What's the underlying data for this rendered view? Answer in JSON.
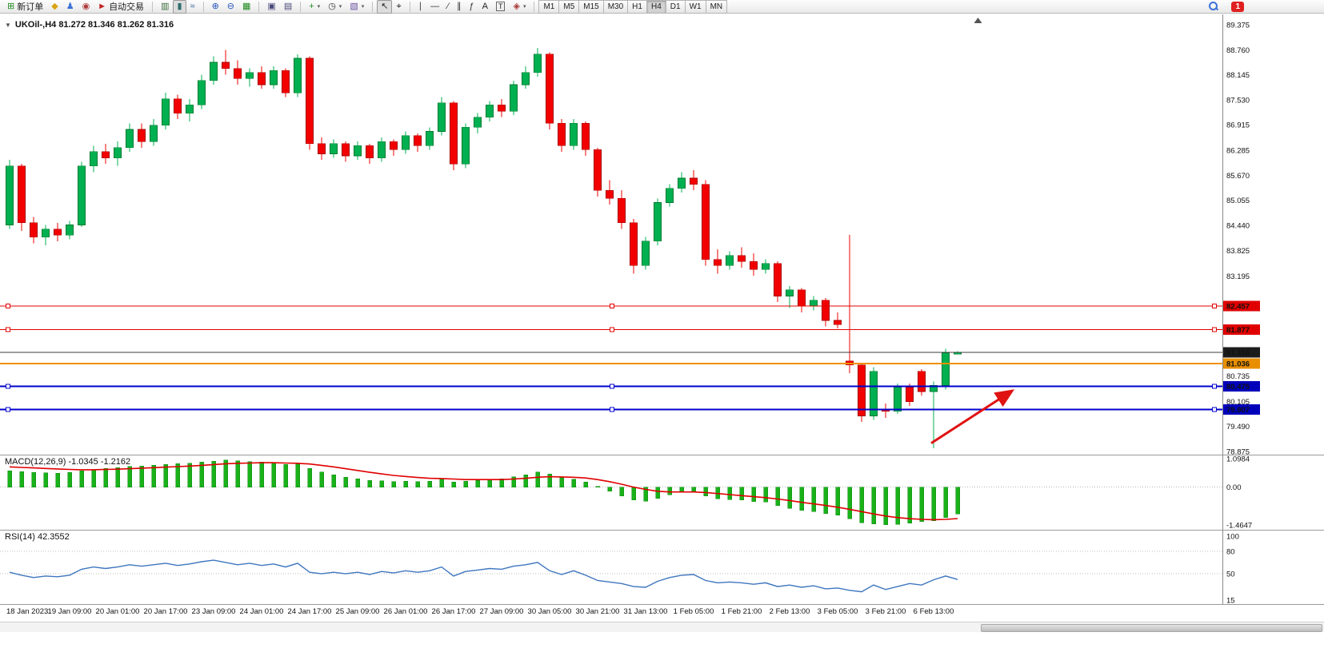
{
  "toolbar": {
    "notification_count": "1",
    "timeframes": [
      "M1",
      "M5",
      "M15",
      "M30",
      "H1",
      "H4",
      "D1",
      "W1",
      "MN"
    ],
    "active_timeframe": "H4",
    "groups": [
      [
        {
          "name": "new-order-button",
          "glyph": "⊞",
          "color": "#1f8a1f",
          "label": "新订单"
        },
        {
          "name": "alerts-icon",
          "glyph": "◆",
          "color": "#d9a413"
        },
        {
          "name": "experts-icon",
          "glyph": "♟",
          "color": "#3a6fd8"
        },
        {
          "name": "community-icon",
          "glyph": "◉",
          "color": "#b03a3a"
        },
        {
          "name": "autotrading-button",
          "glyph": "►",
          "color": "#c22222",
          "label": "自动交易"
        }
      ],
      [
        {
          "name": "bar-chart-icon",
          "glyph": "▥",
          "color": "#3b6e3b"
        },
        {
          "name": "candlestick-chart-icon",
          "glyph": "▮",
          "color": "#2f6e6e",
          "pressed": true
        },
        {
          "name": "line-chart-icon",
          "glyph": "≈",
          "color": "#2f5e9e"
        }
      ],
      [
        {
          "name": "zoom-in-icon",
          "glyph": "⊕",
          "color": "#2255bb"
        },
        {
          "name": "zoom-out-icon",
          "glyph": "⊖",
          "color": "#2255bb"
        },
        {
          "name": "tile-windows-icon",
          "glyph": "▦",
          "color": "#1f8a1f"
        }
      ],
      [
        {
          "name": "cascade-windows-icon",
          "glyph": "▣",
          "color": "#4a4a7a"
        },
        {
          "name": "arrange-windows-icon",
          "glyph": "▤",
          "color": "#4a4a7a"
        }
      ],
      [
        {
          "name": "new-chart-button",
          "glyph": "+",
          "color": "#1f8a1f",
          "dropdown": true
        },
        {
          "name": "period-button",
          "glyph": "◷",
          "color": "#333333",
          "dropdown": true
        },
        {
          "name": "template-button",
          "glyph": "▧",
          "color": "#6b4fa0",
          "dropdown": true
        }
      ],
      [
        {
          "name": "cursor-icon",
          "glyph": "↖",
          "color": "#222222",
          "pressed": true
        },
        {
          "name": "crosshair-icon",
          "glyph": "⌖",
          "color": "#222222"
        }
      ],
      [
        {
          "name": "vertical-line-icon",
          "glyph": "∣",
          "color": "#333333"
        },
        {
          "name": "horizontal-line-icon",
          "glyph": "—",
          "color": "#333333"
        },
        {
          "name": "trendline-icon",
          "glyph": "∕",
          "color": "#333333"
        },
        {
          "name": "channel-icon",
          "glyph": "∥",
          "color": "#333333"
        },
        {
          "name": "fibonacci-icon",
          "glyph": "ƒ",
          "color": "#333333"
        },
        {
          "name": "text-icon",
          "glyph": "A",
          "color": "#222222"
        },
        {
          "name": "label-icon",
          "glyph": "T",
          "color": "#222222",
          "boxed": true
        },
        {
          "name": "arrows-button",
          "glyph": "◈",
          "color": "#aa3333",
          "dropdown": true
        }
      ]
    ]
  },
  "chart": {
    "symbol_ohlc_label": "UKOil-,H4  81.272 81.346 81.262 81.316",
    "one_click_glyph": "▼"
  },
  "indicators": {
    "macd": {
      "label": "MACD(12,26,9) -1.0345 -1.2162"
    },
    "rsi": {
      "label": "RSI(14) 42.3552"
    }
  },
  "chart_data": {
    "type": "candlestick",
    "symbol": "UKOil-",
    "timeframe": "H4",
    "current_bar": {
      "open": 81.272,
      "high": 81.346,
      "low": 81.262,
      "close": 81.316
    },
    "colors": {
      "up": "#00b050",
      "down": "#f20000",
      "macd_hist": "#19b219",
      "macd_signal": "#e00000",
      "rsi_line": "#3f76bf"
    },
    "price_axis": [
      "89.375",
      "88.760",
      "88.145",
      "87.530",
      "86.915",
      "86.285",
      "85.670",
      "85.055",
      "84.440",
      "83.825",
      "83.195",
      "80.735",
      "80.105",
      "79.490",
      "78.875"
    ],
    "time_labels": [
      "18 Jan 2023",
      "19 Jan 09:00",
      "20 Jan 01:00",
      "20 Jan 17:00",
      "23 Jan 09:00",
      "24 Jan 01:00",
      "24 Jan 17:00",
      "25 Jan 09:00",
      "26 Jan 01:00",
      "26 Jan 17:00",
      "27 Jan 09:00",
      "30 Jan 05:00",
      "30 Jan 21:00",
      "31 Jan 13:00",
      "1 Feb 05:00",
      "1 Feb 21:00",
      "2 Feb 13:00",
      "3 Feb 05:00",
      "3 Feb 21:00",
      "6 Feb 13:00"
    ],
    "ohlc": [
      [
        84.45,
        86.05,
        84.35,
        85.9
      ],
      [
        85.9,
        85.95,
        84.3,
        84.5
      ],
      [
        84.5,
        84.65,
        84.0,
        84.15
      ],
      [
        84.15,
        84.45,
        83.95,
        84.35
      ],
      [
        84.35,
        84.5,
        84.05,
        84.2
      ],
      [
        84.2,
        84.55,
        84.1,
        84.45
      ],
      [
        84.45,
        86.0,
        84.4,
        85.9
      ],
      [
        85.9,
        86.4,
        85.75,
        86.25
      ],
      [
        86.25,
        86.45,
        85.95,
        86.1
      ],
      [
        86.1,
        86.5,
        85.9,
        86.35
      ],
      [
        86.35,
        86.95,
        86.25,
        86.8
      ],
      [
        86.8,
        86.95,
        86.35,
        86.5
      ],
      [
        86.5,
        87.05,
        86.4,
        86.9
      ],
      [
        86.9,
        87.7,
        86.8,
        87.55
      ],
      [
        87.55,
        87.65,
        87.05,
        87.2
      ],
      [
        87.2,
        87.55,
        87.0,
        87.4
      ],
      [
        87.4,
        88.15,
        87.3,
        88.0
      ],
      [
        88.0,
        88.6,
        87.9,
        88.45
      ],
      [
        88.45,
        88.76,
        88.15,
        88.3
      ],
      [
        88.3,
        88.5,
        87.9,
        88.05
      ],
      [
        88.05,
        88.3,
        87.85,
        88.2
      ],
      [
        88.2,
        88.35,
        87.8,
        87.9
      ],
      [
        87.9,
        88.35,
        87.8,
        88.25
      ],
      [
        88.25,
        88.3,
        87.6,
        87.7
      ],
      [
        87.7,
        88.65,
        87.6,
        88.55
      ],
      [
        88.55,
        88.6,
        86.3,
        86.45
      ],
      [
        86.45,
        86.6,
        86.05,
        86.2
      ],
      [
        86.2,
        86.55,
        86.1,
        86.45
      ],
      [
        86.45,
        86.5,
        86.0,
        86.15
      ],
      [
        86.15,
        86.5,
        86.05,
        86.4
      ],
      [
        86.4,
        86.45,
        85.95,
        86.1
      ],
      [
        86.1,
        86.6,
        86.0,
        86.5
      ],
      [
        86.5,
        86.55,
        86.15,
        86.3
      ],
      [
        86.3,
        86.75,
        86.2,
        86.65
      ],
      [
        86.65,
        86.7,
        86.25,
        86.4
      ],
      [
        86.4,
        86.85,
        86.3,
        86.75
      ],
      [
        86.75,
        87.6,
        86.65,
        87.45
      ],
      [
        87.45,
        87.5,
        85.8,
        85.95
      ],
      [
        85.95,
        86.95,
        85.85,
        86.85
      ],
      [
        86.85,
        87.2,
        86.7,
        87.1
      ],
      [
        87.1,
        87.5,
        87.0,
        87.4
      ],
      [
        87.4,
        87.55,
        87.1,
        87.25
      ],
      [
        87.25,
        88.0,
        87.15,
        87.9
      ],
      [
        87.9,
        88.35,
        87.8,
        88.2
      ],
      [
        88.2,
        88.8,
        88.1,
        88.65
      ],
      [
        88.65,
        88.7,
        86.8,
        86.95
      ],
      [
        86.95,
        87.05,
        86.25,
        86.4
      ],
      [
        86.4,
        87.05,
        86.3,
        86.95
      ],
      [
        86.95,
        87.0,
        86.15,
        86.3
      ],
      [
        86.3,
        86.35,
        85.15,
        85.3
      ],
      [
        85.3,
        85.55,
        84.95,
        85.1
      ],
      [
        85.1,
        85.3,
        84.35,
        84.5
      ],
      [
        84.5,
        84.6,
        83.25,
        83.45
      ],
      [
        83.45,
        84.15,
        83.35,
        84.05
      ],
      [
        84.05,
        85.1,
        83.95,
        85.0
      ],
      [
        85.0,
        85.45,
        84.9,
        85.35
      ],
      [
        85.35,
        85.75,
        85.25,
        85.6
      ],
      [
        85.6,
        85.8,
        85.3,
        85.45
      ],
      [
        85.45,
        85.55,
        83.45,
        83.6
      ],
      [
        83.6,
        83.85,
        83.25,
        83.45
      ],
      [
        83.45,
        83.8,
        83.35,
        83.7
      ],
      [
        83.7,
        83.9,
        83.4,
        83.55
      ],
      [
        83.55,
        83.75,
        83.2,
        83.35
      ],
      [
        83.35,
        83.6,
        83.25,
        83.5
      ],
      [
        83.5,
        83.55,
        82.55,
        82.7
      ],
      [
        82.7,
        82.95,
        82.4,
        82.85
      ],
      [
        82.85,
        82.9,
        82.3,
        82.45
      ],
      [
        82.45,
        82.7,
        82.35,
        82.6
      ],
      [
        82.6,
        82.65,
        81.95,
        82.1
      ],
      [
        82.1,
        82.3,
        81.9,
        82.0
      ],
      [
        81.1,
        84.2,
        80.8,
        81.0
      ],
      [
        81.0,
        81.05,
        79.6,
        79.75
      ],
      [
        79.75,
        80.95,
        79.65,
        80.85
      ],
      [
        79.9,
        80.05,
        79.7,
        79.86
      ],
      [
        79.86,
        80.55,
        79.8,
        80.45
      ],
      [
        80.45,
        80.55,
        80.0,
        80.1
      ],
      [
        80.85,
        80.9,
        80.25,
        80.35
      ],
      [
        80.35,
        80.6,
        78.95,
        80.5
      ],
      [
        80.5,
        81.4,
        80.4,
        81.3
      ],
      [
        81.272,
        81.346,
        81.262,
        81.316
      ]
    ],
    "hlines": [
      {
        "price": 82.457,
        "color": "#e00000",
        "width": 1,
        "tag": "82.457",
        "tag_bg": "#e00000",
        "handles": true,
        "role": "resistance-line"
      },
      {
        "price": 81.877,
        "color": "#e00000",
        "width": 1,
        "tag": "81.877",
        "tag_bg": "#e00000",
        "handles": true,
        "role": "resistance-line"
      },
      {
        "price": 81.316,
        "color": "#3c3c3c",
        "width": 1,
        "tag": "81.316",
        "tag_bg": "#1c1c1c",
        "handles": false,
        "role": "bid-line"
      },
      {
        "price": 81.036,
        "color": "#f09000",
        "width": 2,
        "tag": "81.036",
        "tag_bg": "#e88e00",
        "handles": false,
        "role": "pivot-line"
      },
      {
        "price": 80.475,
        "color": "#0000cd",
        "width": 2,
        "tag": "80.475",
        "tag_bg": "#0000bb",
        "handles": true,
        "role": "support-line"
      },
      {
        "price": 79.907,
        "color": "#0000cd",
        "width": 2,
        "tag": "79.907",
        "tag_bg": "#0000bb",
        "handles": true,
        "role": "support-line"
      }
    ],
    "arrow": {
      "from_bar": 76.8,
      "from_price": 79.08,
      "to_bar": 83.4,
      "to_price": 80.34,
      "color": "#e01212",
      "width": 3
    },
    "shift_marker_bar": 80.7,
    "macd": {
      "scale_max": 1.0984,
      "scale_min": -1.4647,
      "axis_labels": [
        {
          "text": "1.0984",
          "value": 1.0984
        },
        {
          "text": "0.00",
          "value": 0
        },
        {
          "text": "-1.4647",
          "value": -1.4647
        }
      ],
      "histogram": [
        0.62,
        0.6,
        0.57,
        0.55,
        0.54,
        0.56,
        0.63,
        0.68,
        0.72,
        0.75,
        0.8,
        0.82,
        0.85,
        0.88,
        0.9,
        0.92,
        0.96,
        1.0,
        1.04,
        1.02,
        0.99,
        0.96,
        0.93,
        0.88,
        0.9,
        0.72,
        0.58,
        0.47,
        0.38,
        0.32,
        0.26,
        0.24,
        0.21,
        0.22,
        0.21,
        0.23,
        0.3,
        0.2,
        0.22,
        0.26,
        0.3,
        0.32,
        0.4,
        0.48,
        0.58,
        0.5,
        0.36,
        0.3,
        0.2,
        0.02,
        -0.16,
        -0.34,
        -0.5,
        -0.54,
        -0.44,
        -0.3,
        -0.2,
        -0.16,
        -0.34,
        -0.46,
        -0.48,
        -0.5,
        -0.56,
        -0.58,
        -0.72,
        -0.82,
        -0.9,
        -0.94,
        -1.02,
        -1.08,
        -1.22,
        -1.38,
        -1.42,
        -1.46,
        -1.44,
        -1.4,
        -1.34,
        -1.3,
        -1.18,
        -1.0345
      ],
      "signal": [
        0.78,
        0.76,
        0.74,
        0.72,
        0.7,
        0.68,
        0.67,
        0.67,
        0.68,
        0.69,
        0.71,
        0.73,
        0.75,
        0.77,
        0.79,
        0.81,
        0.84,
        0.87,
        0.9,
        0.92,
        0.93,
        0.94,
        0.94,
        0.93,
        0.92,
        0.89,
        0.84,
        0.78,
        0.71,
        0.64,
        0.57,
        0.51,
        0.45,
        0.41,
        0.37,
        0.34,
        0.33,
        0.31,
        0.29,
        0.29,
        0.29,
        0.29,
        0.31,
        0.34,
        0.38,
        0.4,
        0.39,
        0.38,
        0.35,
        0.29,
        0.21,
        0.11,
        0.0,
        -0.09,
        -0.16,
        -0.19,
        -0.19,
        -0.19,
        -0.21,
        -0.25,
        -0.29,
        -0.33,
        -0.37,
        -0.41,
        -0.46,
        -0.52,
        -0.59,
        -0.65,
        -0.71,
        -0.78,
        -0.86,
        -0.95,
        -1.04,
        -1.12,
        -1.18,
        -1.22,
        -1.25,
        -1.26,
        -1.25,
        -1.2162
      ]
    },
    "rsi": {
      "scale_max": 100,
      "scale_min": 15,
      "levels": [
        80,
        50
      ],
      "axis_labels": [
        {
          "text": "100",
          "value": 100
        },
        {
          "text": "80",
          "value": 80
        },
        {
          "text": "50",
          "value": 50
        },
        {
          "text": "15",
          "value": 15
        }
      ],
      "values": [
        52,
        48,
        45,
        47,
        46,
        48,
        56,
        59,
        57,
        59,
        62,
        60,
        62,
        64,
        61,
        63,
        66,
        68,
        65,
        62,
        64,
        61,
        63,
        59,
        64,
        52,
        50,
        52,
        50,
        52,
        49,
        53,
        51,
        54,
        52,
        54,
        59,
        47,
        53,
        55,
        57,
        56,
        60,
        62,
        65,
        54,
        49,
        54,
        48,
        41,
        39,
        37,
        33,
        32,
        40,
        45,
        48,
        49,
        41,
        38,
        39,
        38,
        36,
        38,
        33,
        35,
        32,
        34,
        30,
        31,
        28,
        26,
        35,
        29,
        33,
        37,
        35,
        42,
        47,
        42.36
      ]
    }
  }
}
